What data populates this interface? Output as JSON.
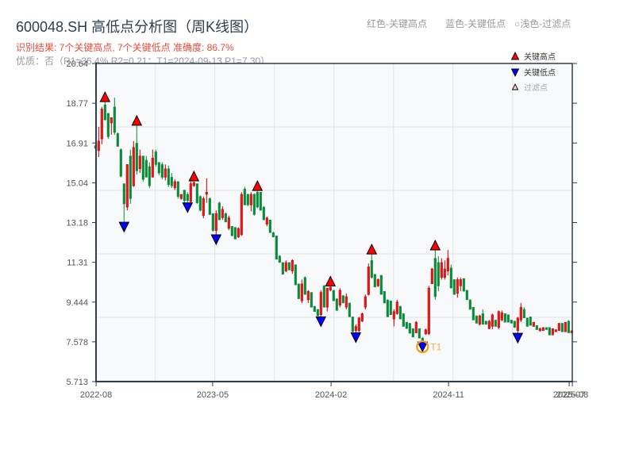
{
  "header": {
    "title": "600048.SH 高低点分析图（周K线图）",
    "result_line": "识别结果: 7个关键高点, 7个关键低点  准确度: 86.7%",
    "quality_line": "优质：否（R1=36.4%  R2=0.21；T1=2024-09-13 P1=7.30）",
    "legend_notes": [
      "红色-关键高点",
      "蓝色-关键低点",
      "○浅色-过滤点"
    ]
  },
  "colors": {
    "title": "#2c3e50",
    "result_text": "#e74c3c",
    "muted_text": "#9a9a9a",
    "candle_up": "#e41a1c",
    "candle_up_stroke": "#c40000",
    "candle_down": "#0a8a3a",
    "key_high_marker": "#ff0000",
    "key_low_marker": "#0000ff",
    "filtered_marker": "#ffd0d0",
    "t1_circle": "#f39c12",
    "t1_label": "#f5b041",
    "plot_background": "#f7f9fb",
    "grid": "#e1e4e8",
    "axis": "#2c3e50",
    "tick_label": "#555555"
  },
  "chart_data": {
    "type": "candlestick",
    "title": "600048.SH 高低点分析图（周K线图）",
    "subtitle": "识别结果: 7个关键高点, 7个关键低点  准确度: 86.7%",
    "xlabel": "",
    "ylabel": "",
    "ylim": [
      5.713,
      20.64
    ],
    "grid": true,
    "legend_position": "top-right",
    "y_ticks": [
      "20.64",
      "18.77",
      "16.91",
      "15.04",
      "13.18",
      "11.31",
      "9.444",
      "7.578",
      "5.713"
    ],
    "x_ticks": [
      {
        "label": "2022-08",
        "index": 0.2
      },
      {
        "label": "2023-05",
        "index": 36.9
      },
      {
        "label": "2024-02",
        "index": 74.2
      },
      {
        "label": "2024-11",
        "index": 111.2
      },
      {
        "label": "2025-07",
        "index": 149.2
      },
      {
        "label": "2025-08",
        "index": 150.2
      }
    ],
    "legend": [
      {
        "label": "关键高点",
        "marker": "triangle-up",
        "color": "#ff0000"
      },
      {
        "label": "关键低点",
        "marker": "triangle-down",
        "color": "#0000ff"
      },
      {
        "label": "过滤点",
        "marker": "triangle-up-small",
        "color": "#ffd0d0"
      }
    ],
    "candle_fields": [
      "open",
      "high",
      "low",
      "close"
    ],
    "candles": [
      [
        16.78,
        16.82,
        16.62,
        16.66
      ],
      [
        16.55,
        17.66,
        16.25,
        17.0
      ],
      [
        17.1,
        18.6,
        16.85,
        18.5
      ],
      [
        18.7,
        18.85,
        17.95,
        18.0
      ],
      [
        18.3,
        18.3,
        17.1,
        17.2
      ],
      [
        17.85,
        18.1,
        17.3,
        18.1
      ],
      [
        18.6,
        19.04,
        17.29,
        17.4
      ],
      [
        17.35,
        17.4,
        16.73,
        16.75
      ],
      [
        16.6,
        16.65,
        15.3,
        15.35
      ],
      [
        15.0,
        15.0,
        13.19,
        14.05
      ],
      [
        13.9,
        15.9,
        13.75,
        15.9
      ],
      [
        16.3,
        16.6,
        14.05,
        14.3
      ],
      [
        14.9,
        17.0,
        14.85,
        16.7
      ],
      [
        16.9,
        17.74,
        15.43,
        15.6
      ],
      [
        15.7,
        16.6,
        15.5,
        16.3
      ],
      [
        16.3,
        16.3,
        15.1,
        15.2
      ],
      [
        16.1,
        16.3,
        15.3,
        15.3
      ],
      [
        15.8,
        16.0,
        14.8,
        14.9
      ],
      [
        15.3,
        16.6,
        15.3,
        16.2
      ],
      [
        16.5,
        16.6,
        15.8,
        15.9
      ],
      [
        16.0,
        16.0,
        15.4,
        15.5
      ],
      [
        15.9,
        16.0,
        15.2,
        15.3
      ],
      [
        15.3,
        15.9,
        15.15,
        15.7
      ],
      [
        15.7,
        15.85,
        14.85,
        14.95
      ],
      [
        15.3,
        15.5,
        14.8,
        14.9
      ],
      [
        14.8,
        15.2,
        14.7,
        15.1
      ],
      [
        15.1,
        15.1,
        14.3,
        14.4
      ],
      [
        14.3,
        14.5,
        14.25,
        14.5
      ],
      [
        14.7,
        14.7,
        14.1,
        14.2
      ],
      [
        14.5,
        14.6,
        14.1,
        14.2
      ],
      [
        14.15,
        15.1,
        14.1,
        15.0
      ],
      [
        14.9,
        15.13,
        14.85,
        15.05
      ],
      [
        15.0,
        15.0,
        14.05,
        14.1
      ],
      [
        14.4,
        14.45,
        13.7,
        13.75
      ],
      [
        13.5,
        14.4,
        13.38,
        14.3
      ],
      [
        14.5,
        15.25,
        14.1,
        14.6
      ],
      [
        14.3,
        14.35,
        13.55,
        13.55
      ],
      [
        13.6,
        13.6,
        12.75,
        12.8
      ],
      [
        12.8,
        13.75,
        12.6,
        13.6
      ],
      [
        14.1,
        14.15,
        13.3,
        13.3
      ],
      [
        13.4,
        13.94,
        13.3,
        13.8
      ],
      [
        13.6,
        13.65,
        13.2,
        13.2
      ],
      [
        12.9,
        13.5,
        12.82,
        13.4
      ],
      [
        13.0,
        13.0,
        12.55,
        12.55
      ],
      [
        12.95,
        12.95,
        12.4,
        12.4
      ],
      [
        12.5,
        12.95,
        12.45,
        12.9
      ],
      [
        12.6,
        14.6,
        12.55,
        14.5
      ],
      [
        14.75,
        14.85,
        14.0,
        14.0
      ],
      [
        14.5,
        14.5,
        13.95,
        14.0
      ],
      [
        14.0,
        14.6,
        13.7,
        14.5
      ],
      [
        14.5,
        14.55,
        13.5,
        13.55
      ],
      [
        14.6,
        14.68,
        13.85,
        13.9
      ],
      [
        14.6,
        14.6,
        13.75,
        13.75
      ],
      [
        13.9,
        13.95,
        13.3,
        13.3
      ],
      [
        13.1,
        13.45,
        13.0,
        13.4
      ],
      [
        13.3,
        13.3,
        12.7,
        12.7
      ],
      [
        12.7,
        12.75,
        12.5,
        12.5
      ],
      [
        12.55,
        12.55,
        11.45,
        11.45
      ],
      [
        11.6,
        11.65,
        11.3,
        11.3
      ],
      [
        11.3,
        11.3,
        10.75,
        10.75
      ],
      [
        10.9,
        11.4,
        10.85,
        11.3
      ],
      [
        11.3,
        11.3,
        10.95,
        10.95
      ],
      [
        10.9,
        11.45,
        10.77,
        11.4
      ],
      [
        11.2,
        11.2,
        10.25,
        10.25
      ],
      [
        10.3,
        10.3,
        9.6,
        9.6
      ],
      [
        9.5,
        10.5,
        9.4,
        10.3
      ],
      [
        10.6,
        10.65,
        9.8,
        9.8
      ],
      [
        9.55,
        10.0,
        9.4,
        9.95
      ],
      [
        9.9,
        9.9,
        9.2,
        9.2
      ],
      [
        9.25,
        9.25,
        9.0,
        9.0
      ],
      [
        9.1,
        9.1,
        8.8,
        8.8
      ],
      [
        8.85,
        10.0,
        8.75,
        9.9
      ],
      [
        10.2,
        10.25,
        9.2,
        9.2
      ],
      [
        9.2,
        10.1,
        9.0,
        10.1
      ],
      [
        10.0,
        10.2,
        9.95,
        10.15
      ],
      [
        10.0,
        10.0,
        9.5,
        9.5
      ],
      [
        9.6,
        9.6,
        9.05,
        9.05
      ],
      [
        9.3,
        10.1,
        9.2,
        10.0
      ],
      [
        9.75,
        9.75,
        9.4,
        9.4
      ],
      [
        9.2,
        9.85,
        9.1,
        9.7
      ],
      [
        9.4,
        9.4,
        8.75,
        8.75
      ],
      [
        8.75,
        8.75,
        8.05,
        8.05
      ],
      [
        8.1,
        8.4,
        8.0,
        8.3
      ],
      [
        8.1,
        8.75,
        8.0,
        8.7
      ],
      [
        8.55,
        8.95,
        8.5,
        8.9
      ],
      [
        9.2,
        9.8,
        9.1,
        9.7
      ],
      [
        9.8,
        11.25,
        9.75,
        11.1
      ],
      [
        11.4,
        11.7,
        10.55,
        10.6
      ],
      [
        10.75,
        10.75,
        10.15,
        10.15
      ],
      [
        10.2,
        10.55,
        10.15,
        10.5
      ],
      [
        10.7,
        10.7,
        9.8,
        9.8
      ],
      [
        9.95,
        9.95,
        9.4,
        9.4
      ],
      [
        9.55,
        9.55,
        8.75,
        8.75
      ],
      [
        9.5,
        9.5,
        8.85,
        8.85
      ],
      [
        8.65,
        9.1,
        8.3,
        9.0
      ],
      [
        8.9,
        9.55,
        8.85,
        9.45
      ],
      [
        9.25,
        9.25,
        8.65,
        8.65
      ],
      [
        8.9,
        8.9,
        8.3,
        8.3
      ],
      [
        8.5,
        8.5,
        8.2,
        8.2
      ],
      [
        8.45,
        8.45,
        7.98,
        7.98
      ],
      [
        8.2,
        8.2,
        7.8,
        7.8
      ],
      [
        8.0,
        8.55,
        7.98,
        8.5
      ],
      [
        8.2,
        8.2,
        7.75,
        7.75
      ],
      [
        7.75,
        7.8,
        7.57,
        7.62
      ],
      [
        7.95,
        8.2,
        7.9,
        8.15
      ],
      [
        7.95,
        10.2,
        7.9,
        10.1
      ],
      [
        10.3,
        11.05,
        10.3,
        11.0
      ],
      [
        11.5,
        11.89,
        9.55,
        9.7
      ],
      [
        11.3,
        11.6,
        9.95,
        10.2
      ],
      [
        10.6,
        11.5,
        10.5,
        11.3
      ],
      [
        10.6,
        11.4,
        10.5,
        11.0
      ],
      [
        10.9,
        11.89,
        10.7,
        11.5
      ],
      [
        11.05,
        11.2,
        10.1,
        10.1
      ],
      [
        10.5,
        10.5,
        9.8,
        9.8
      ],
      [
        9.85,
        10.6,
        9.65,
        10.5
      ],
      [
        10.2,
        10.6,
        9.95,
        10.5
      ],
      [
        10.55,
        10.55,
        9.95,
        9.95
      ],
      [
        10.0,
        10.0,
        9.55,
        9.55
      ],
      [
        9.55,
        9.55,
        9.1,
        9.1
      ],
      [
        9.2,
        9.2,
        8.6,
        8.6
      ],
      [
        8.8,
        8.8,
        8.45,
        8.45
      ],
      [
        8.4,
        8.85,
        8.35,
        8.8
      ],
      [
        8.9,
        9.1,
        8.4,
        8.4
      ],
      [
        8.55,
        8.55,
        8.4,
        8.4
      ],
      [
        8.2,
        8.6,
        8.17,
        8.55
      ],
      [
        8.3,
        8.9,
        8.17,
        8.85
      ],
      [
        8.6,
        8.6,
        8.3,
        8.3
      ],
      [
        8.25,
        9.05,
        8.17,
        9.0
      ],
      [
        8.6,
        9.05,
        8.55,
        8.95
      ],
      [
        8.9,
        8.9,
        8.5,
        8.5
      ],
      [
        8.85,
        8.85,
        8.5,
        8.5
      ],
      [
        8.6,
        8.6,
        8.45,
        8.45
      ],
      [
        8.55,
        8.55,
        8.25,
        8.25
      ],
      [
        8.1,
        8.75,
        7.98,
        8.7
      ],
      [
        8.6,
        9.4,
        8.5,
        9.2
      ],
      [
        9.1,
        9.2,
        8.7,
        8.7
      ],
      [
        8.7,
        8.7,
        8.3,
        8.3
      ],
      [
        8.75,
        8.75,
        8.35,
        8.35
      ],
      [
        8.3,
        8.5,
        8.3,
        8.5
      ],
      [
        8.35,
        8.35,
        8.15,
        8.15
      ],
      [
        8.1,
        8.25,
        8.05,
        8.2
      ],
      [
        8.1,
        8.25,
        8.1,
        8.25
      ],
      [
        8.25,
        8.25,
        8.15,
        8.15
      ],
      [
        8.25,
        8.25,
        7.9,
        7.9
      ],
      [
        7.9,
        8.2,
        7.9,
        8.2
      ],
      [
        8.05,
        8.15,
        8.05,
        8.15
      ],
      [
        8.1,
        8.45,
        8.1,
        8.45
      ],
      [
        8.45,
        8.45,
        8.05,
        8.05
      ],
      [
        8.05,
        8.5,
        8.05,
        8.5
      ],
      [
        8.55,
        8.6,
        8.0,
        8.0
      ],
      [
        8.0,
        8.1,
        8.0,
        8.1
      ]
    ],
    "key_highs": [
      {
        "index": 3,
        "value": 18.85
      },
      {
        "index": 13,
        "value": 17.74
      },
      {
        "index": 31,
        "value": 15.13
      },
      {
        "index": 51,
        "value": 14.68
      },
      {
        "index": 74,
        "value": 10.2
      },
      {
        "index": 87,
        "value": 11.7
      },
      {
        "index": 107,
        "value": 11.89
      }
    ],
    "key_lows": [
      {
        "index": 9,
        "value": 13.19
      },
      {
        "index": 29,
        "value": 14.1
      },
      {
        "index": 38,
        "value": 12.6
      },
      {
        "index": 71,
        "value": 8.75
      },
      {
        "index": 82,
        "value": 8.0
      },
      {
        "index": 103,
        "value": 7.57
      },
      {
        "index": 133,
        "value": 7.98
      }
    ],
    "annotations": [
      {
        "label": "T1",
        "index": 103,
        "value": 7.57,
        "shape": "circle"
      }
    ]
  }
}
